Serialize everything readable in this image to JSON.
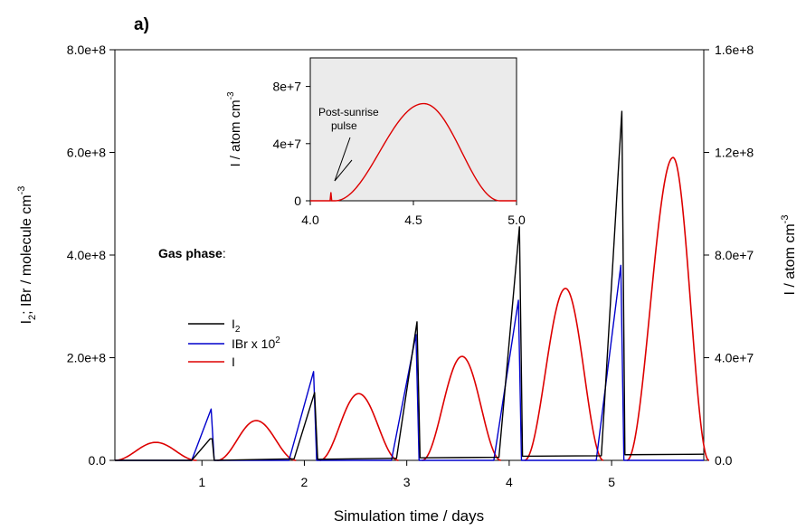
{
  "chart_data": [
    {
      "type": "line",
      "panel_label": "a)",
      "xlabel": "Simulation time / days",
      "ylabel_left": {
        "base": "I",
        "sub": "2",
        "rest": "; IBr / molecule cm",
        "sup": "-3"
      },
      "ylabel_right": {
        "base": "I / atom cm",
        "sup": "-3"
      },
      "xlim": [
        0.15,
        5.9
      ],
      "x_ticks": [
        1,
        2,
        3,
        4,
        5
      ],
      "ylim_left": [
        0,
        800000000
      ],
      "ylim_right": [
        0,
        160000000
      ],
      "y_ticks_left": [
        "0.0",
        "2.0e+8",
        "4.0e+8",
        "6.0e+8",
        "8.0e+8"
      ],
      "y_ticks_right": [
        "0.0",
        "4.0e+7",
        "8.0e+7",
        "1.2e+8",
        "1.6e+8"
      ],
      "legend_title": "Gas phase",
      "legend_title_suffix": ":",
      "legend_position": "center-left",
      "series": [
        {
          "name": "I",
          "name_sub": "2",
          "color": "#000000",
          "axis": "left",
          "points": [
            [
              0.15,
              0
            ],
            [
              0.9,
              0
            ],
            [
              1.08,
              42000000
            ],
            [
              1.1,
              42000000
            ],
            [
              1.12,
              0
            ],
            [
              1.9,
              3000000
            ],
            [
              2.1,
              132000000
            ],
            [
              2.13,
              2000000
            ],
            [
              2.9,
              4000000
            ],
            [
              3.1,
              270000000
            ],
            [
              3.13,
              5000000
            ],
            [
              3.9,
              6000000
            ],
            [
              4.1,
              455000000
            ],
            [
              4.13,
              8000000
            ],
            [
              4.9,
              9000000
            ],
            [
              5.1,
              680000000
            ],
            [
              5.13,
              11000000
            ],
            [
              5.9,
              12000000
            ]
          ]
        },
        {
          "name": "IBr x 10",
          "name_sup": "2",
          "color": "#0000cc",
          "axis": "left",
          "points": [
            [
              0.15,
              0
            ],
            [
              0.9,
              0
            ],
            [
              1.09,
              100000000
            ],
            [
              1.12,
              0
            ],
            [
              1.85,
              0
            ],
            [
              2.09,
              173000000
            ],
            [
              2.12,
              0
            ],
            [
              2.85,
              0
            ],
            [
              3.09,
              245000000
            ],
            [
              3.12,
              0
            ],
            [
              3.85,
              0
            ],
            [
              4.09,
              312000000
            ],
            [
              4.12,
              0
            ],
            [
              4.85,
              0
            ],
            [
              5.09,
              380000000
            ],
            [
              5.12,
              0
            ],
            [
              5.9,
              0
            ]
          ]
        },
        {
          "name": "I",
          "color": "#dd0000",
          "axis": "right",
          "arches": [
            {
              "start": 0.15,
              "end": 0.95,
              "peak_x": 0.55,
              "peak": 7000000
            },
            {
              "start": 1.15,
              "end": 1.92,
              "peak_x": 1.53,
              "peak": 15500000
            },
            {
              "start": 2.15,
              "end": 2.92,
              "peak_x": 2.53,
              "peak": 26000000
            },
            {
              "start": 3.15,
              "end": 3.92,
              "peak_x": 3.54,
              "peak": 40500000
            },
            {
              "start": 4.15,
              "end": 4.92,
              "peak_x": 4.55,
              "peak": 67000000
            },
            {
              "start": 5.15,
              "end": 5.95,
              "peak_x": 5.6,
              "peak": 118000000
            }
          ]
        }
      ]
    },
    {
      "type": "line",
      "role": "inset",
      "xlim": [
        4.0,
        5.0
      ],
      "x_ticks": [
        "4.0",
        "4.5",
        "5.0"
      ],
      "ylim": [
        0,
        100000000
      ],
      "y_ticks": [
        {
          "value": 0,
          "label": "0"
        },
        {
          "value": 40000000,
          "label": "4e+7"
        },
        {
          "value": 80000000,
          "label": "8e+7"
        }
      ],
      "ylabel": {
        "base": "I / atom cm",
        "sup": "-3"
      },
      "annotation_lines": [
        "Post-sunrise",
        "pulse"
      ],
      "background": "#ebebeb",
      "series": [
        {
          "name": "I",
          "color": "#dd0000",
          "pulse": {
            "x": 4.1,
            "peak": 6000000
          },
          "arch": {
            "start": 4.12,
            "end": 4.92,
            "peak_x": 4.55,
            "peak": 68000000
          }
        }
      ]
    }
  ]
}
